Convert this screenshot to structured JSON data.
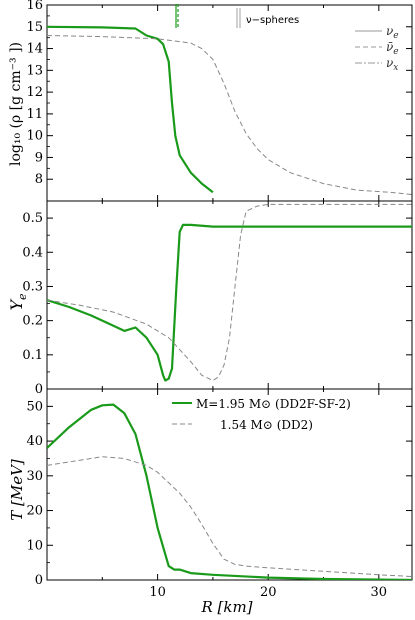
{
  "chart_data": [
    {
      "type": "line",
      "panel": "top",
      "ylabel": "log₁₀ (ρ [g cm⁻³ ])",
      "ylim": [
        7.0,
        16.0
      ],
      "yticks": [
        8,
        9,
        10,
        11,
        12,
        13,
        14,
        15,
        16
      ],
      "xlim": [
        0,
        33
      ],
      "series": [
        {
          "name": "M=1.95 M⊙ (DD2F-SF-2)",
          "color": "#1a9a1a",
          "style": "solid",
          "x": [
            0,
            5,
            8,
            9,
            10,
            10.5,
            11,
            11.3,
            11.6,
            12,
            13,
            14,
            15
          ],
          "y": [
            15.0,
            14.97,
            14.92,
            14.6,
            14.45,
            14.2,
            13.4,
            11.5,
            10.0,
            9.1,
            8.3,
            7.8,
            7.4
          ]
        },
        {
          "name": "1.54 M⊙ (DD2)",
          "color": "#888888",
          "style": "dashed",
          "x": [
            0,
            5,
            10,
            13,
            14,
            15,
            16,
            17,
            18,
            19,
            20,
            22,
            25,
            28,
            31,
            33
          ],
          "y": [
            14.6,
            14.55,
            14.45,
            14.25,
            14.0,
            13.5,
            12.4,
            11.1,
            10.1,
            9.4,
            8.9,
            8.3,
            7.8,
            7.5,
            7.4,
            7.3
          ]
        }
      ]
    },
    {
      "type": "line",
      "panel": "middle",
      "ylabel": "Y_e",
      "ylim": [
        0.0,
        0.55
      ],
      "yticks": [
        0,
        0.1,
        0.2,
        0.3,
        0.4,
        0.5
      ],
      "xlim": [
        0,
        33
      ],
      "series": [
        {
          "name": "M=1.95 M⊙ (DD2F-SF-2)",
          "color": "#1a9a1a",
          "style": "solid",
          "x": [
            0,
            2,
            4,
            6,
            7,
            7.5,
            8,
            9,
            10,
            10.5,
            10.7,
            11,
            11.3,
            11.7,
            12,
            12.3,
            13,
            15,
            20,
            25,
            33
          ],
          "y": [
            0.26,
            0.24,
            0.215,
            0.185,
            0.17,
            0.175,
            0.18,
            0.15,
            0.1,
            0.04,
            0.025,
            0.03,
            0.06,
            0.3,
            0.46,
            0.48,
            0.48,
            0.475,
            0.475,
            0.475,
            0.475
          ]
        },
        {
          "name": "1.54 M⊙ (DD2)",
          "color": "#888888",
          "style": "dashed",
          "x": [
            0,
            3,
            6,
            9,
            11,
            13,
            14,
            15,
            15.5,
            16,
            16.5,
            17,
            17.5,
            18,
            19,
            20,
            25,
            30,
            33
          ],
          "y": [
            0.26,
            0.245,
            0.225,
            0.19,
            0.15,
            0.08,
            0.04,
            0.025,
            0.035,
            0.07,
            0.15,
            0.3,
            0.45,
            0.52,
            0.535,
            0.54,
            0.54,
            0.54,
            0.54
          ]
        }
      ]
    },
    {
      "type": "line",
      "panel": "bottom",
      "ylabel": "T  [MeV]",
      "xlabel": "R  [km]",
      "ylim": [
        0,
        55
      ],
      "yticks": [
        0,
        10,
        20,
        30,
        40,
        50
      ],
      "xlim": [
        0,
        33
      ],
      "xticks": [
        10,
        20,
        30
      ],
      "series": [
        {
          "name": "M=1.95 M⊙ (DD2F-SF-2)",
          "color": "#1a9a1a",
          "style": "solid",
          "x": [
            0,
            2,
            4,
            5,
            6,
            7,
            8,
            9,
            10,
            11,
            11.5,
            12,
            13,
            15,
            20,
            25,
            33
          ],
          "y": [
            38,
            44,
            49,
            50.3,
            50.5,
            48,
            42,
            30,
            15,
            4,
            3,
            3,
            2,
            1.5,
            0.7,
            0.3,
            0
          ]
        },
        {
          "name": "1.54 M⊙ (DD2)",
          "color": "#888888",
          "style": "dashed",
          "x": [
            0,
            3,
            5,
            7,
            9,
            10,
            11,
            12,
            13,
            14,
            15,
            16,
            17,
            18,
            20,
            25,
            30,
            33
          ],
          "y": [
            33,
            34.5,
            35.5,
            35,
            33,
            31,
            28,
            25,
            21,
            16,
            10.5,
            6,
            4.5,
            4,
            3.5,
            2.5,
            1.5,
            1
          ]
        }
      ]
    }
  ],
  "annotations": {
    "nu_spheres": "ν−spheres",
    "nu_legend": [
      "ν_e",
      "ν̄_e",
      "ν_x"
    ]
  },
  "legend": {
    "entries": [
      "M=1.95 M⊙  (DD2F-SF-2)",
      "1.54 M⊙  (DD2)"
    ]
  }
}
